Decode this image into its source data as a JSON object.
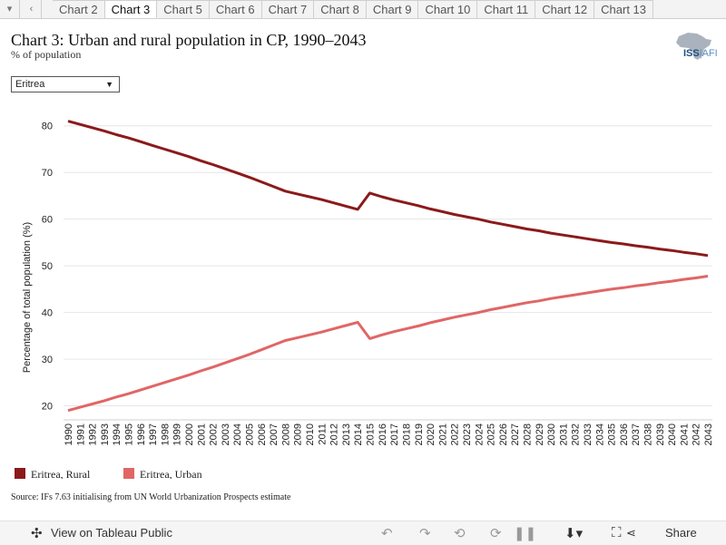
{
  "tabs": {
    "items": [
      "Chart 2",
      "Chart 3",
      "Chart 5",
      "Chart 6",
      "Chart 7",
      "Chart 8",
      "Chart 9",
      "Chart 10",
      "Chart 11",
      "Chart 12",
      "Chart 13"
    ],
    "active_index": 1
  },
  "header": {
    "title": "Chart 3: Urban and rural population in CP, 1990–2043",
    "subtitle": "% of population",
    "logo_text_main": "ISS",
    "logo_text_accent": "AFI"
  },
  "filter": {
    "selected": "Eritrea"
  },
  "chart_data": {
    "type": "line",
    "title": "Chart 3: Urban and rural population in CP, 1990–2043",
    "subtitle": "% of population",
    "xlabel": "",
    "ylabel": "Percentage of total population (%)",
    "x": [
      1990,
      1991,
      1992,
      1993,
      1994,
      1995,
      1996,
      1997,
      1998,
      1999,
      2000,
      2001,
      2002,
      2003,
      2004,
      2005,
      2006,
      2007,
      2008,
      2009,
      2010,
      2011,
      2012,
      2013,
      2014,
      2015,
      2016,
      2017,
      2018,
      2019,
      2020,
      2021,
      2022,
      2023,
      2024,
      2025,
      2026,
      2027,
      2028,
      2029,
      2030,
      2031,
      2032,
      2033,
      2034,
      2035,
      2036,
      2037,
      2038,
      2039,
      2040,
      2041,
      2042,
      2043
    ],
    "ylim": [
      17,
      85
    ],
    "yticks": [
      20,
      30,
      40,
      50,
      60,
      70,
      80
    ],
    "grid": true,
    "legend_position": "bottom-left",
    "series": [
      {
        "name": "Eritrea, Rural",
        "color": "#8b1a1a",
        "values": [
          81.0,
          80.3,
          79.6,
          78.9,
          78.1,
          77.4,
          76.6,
          75.8,
          75.0,
          74.2,
          73.4,
          72.5,
          71.7,
          70.8,
          69.9,
          69.0,
          68.0,
          67.0,
          66.0,
          65.4,
          64.8,
          64.2,
          63.5,
          62.8,
          62.1,
          65.6,
          64.8,
          64.1,
          63.5,
          62.9,
          62.2,
          61.6,
          61.0,
          60.5,
          60.0,
          59.4,
          58.9,
          58.4,
          57.9,
          57.5,
          57.0,
          56.6,
          56.2,
          55.8,
          55.4,
          55.0,
          54.7,
          54.3,
          54.0,
          53.6,
          53.3,
          52.9,
          52.6,
          52.2
        ]
      },
      {
        "name": "Eritrea, Urban",
        "color": "#e06666",
        "values": [
          19.0,
          19.7,
          20.4,
          21.1,
          21.9,
          22.6,
          23.4,
          24.2,
          25.0,
          25.8,
          26.6,
          27.5,
          28.3,
          29.2,
          30.1,
          31.0,
          32.0,
          33.0,
          34.0,
          34.6,
          35.2,
          35.8,
          36.5,
          37.2,
          37.9,
          34.4,
          35.2,
          35.9,
          36.5,
          37.1,
          37.8,
          38.4,
          39.0,
          39.5,
          40.0,
          40.6,
          41.1,
          41.6,
          42.1,
          42.5,
          43.0,
          43.4,
          43.8,
          44.2,
          44.6,
          45.0,
          45.3,
          45.7,
          46.0,
          46.4,
          46.7,
          47.1,
          47.4,
          47.8
        ]
      }
    ]
  },
  "source": "Source: IFs 7.63 initialising from UN World Urbanization Prospects estimate",
  "footer": {
    "view_label": "View on Tableau Public",
    "share_label": "Share"
  }
}
